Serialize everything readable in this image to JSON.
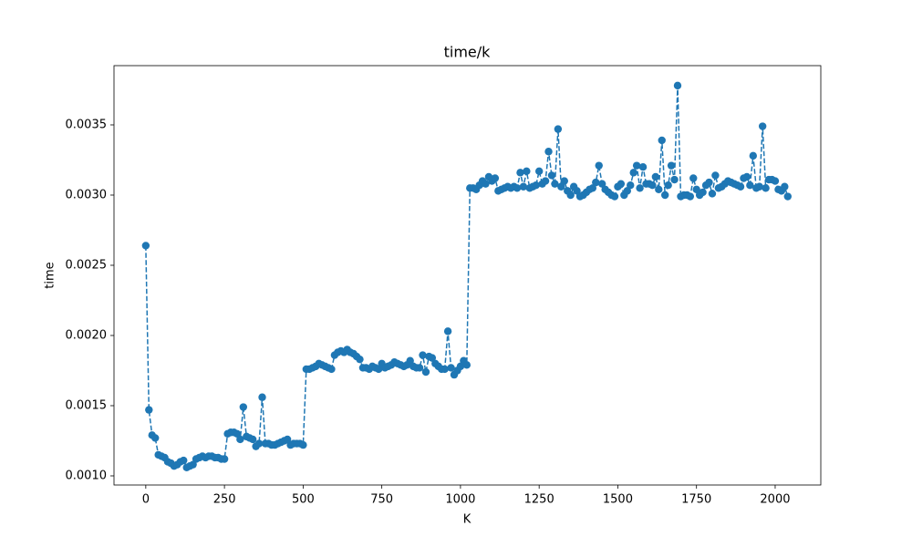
{
  "chart_data": {
    "type": "line",
    "title": "time/k",
    "x_label": "K",
    "y_label": "time",
    "color": "#1f77b4",
    "linestyle": "dashed",
    "marker": "circle",
    "x": [
      0,
      10,
      20,
      30,
      40,
      50,
      60,
      70,
      80,
      90,
      100,
      110,
      120,
      130,
      140,
      150,
      160,
      170,
      180,
      190,
      200,
      210,
      220,
      230,
      240,
      250,
      260,
      270,
      280,
      290,
      300,
      310,
      320,
      330,
      340,
      350,
      360,
      370,
      380,
      390,
      400,
      410,
      420,
      430,
      440,
      450,
      460,
      470,
      480,
      490,
      500,
      510,
      520,
      530,
      540,
      550,
      560,
      570,
      580,
      590,
      600,
      610,
      620,
      630,
      640,
      650,
      660,
      670,
      680,
      690,
      700,
      710,
      720,
      730,
      740,
      750,
      760,
      770,
      780,
      790,
      800,
      810,
      820,
      830,
      840,
      850,
      860,
      870,
      880,
      890,
      900,
      910,
      920,
      930,
      940,
      950,
      960,
      970,
      980,
      990,
      1000,
      1010,
      1020,
      1030,
      1040,
      1050,
      1060,
      1070,
      1080,
      1090,
      1100,
      1110,
      1120,
      1130,
      1140,
      1150,
      1160,
      1170,
      1180,
      1190,
      1200,
      1210,
      1220,
      1230,
      1240,
      1250,
      1260,
      1270,
      1280,
      1290,
      1300,
      1310,
      1320,
      1330,
      1340,
      1350,
      1360,
      1370,
      1380,
      1390,
      1400,
      1410,
      1420,
      1430,
      1440,
      1450,
      1460,
      1470,
      1480,
      1490,
      1500,
      1510,
      1520,
      1530,
      1540,
      1550,
      1560,
      1570,
      1580,
      1590,
      1600,
      1610,
      1620,
      1630,
      1640,
      1650,
      1660,
      1670,
      1680,
      1690,
      1700,
      1710,
      1720,
      1730,
      1740,
      1750,
      1760,
      1770,
      1780,
      1790,
      1800,
      1810,
      1820,
      1830,
      1840,
      1850,
      1860,
      1870,
      1880,
      1890,
      1900,
      1910,
      1920,
      1930,
      1940,
      1950,
      1960,
      1970,
      1980,
      1990,
      2000,
      2010,
      2020,
      2030,
      2040
    ],
    "values": [
      0.00264,
      0.00147,
      0.00129,
      0.00127,
      0.00115,
      0.00114,
      0.00113,
      0.0011,
      0.00109,
      0.00107,
      0.00108,
      0.0011,
      0.00111,
      0.00106,
      0.00107,
      0.00108,
      0.00112,
      0.00113,
      0.00114,
      0.00113,
      0.00114,
      0.00114,
      0.00113,
      0.00113,
      0.00112,
      0.00112,
      0.0013,
      0.00131,
      0.00131,
      0.0013,
      0.00126,
      0.00149,
      0.00128,
      0.00127,
      0.00126,
      0.00121,
      0.00123,
      0.00156,
      0.00123,
      0.00123,
      0.00122,
      0.00122,
      0.00123,
      0.00124,
      0.00125,
      0.00126,
      0.00122,
      0.00123,
      0.00123,
      0.00123,
      0.00122,
      0.00176,
      0.00176,
      0.00177,
      0.00178,
      0.0018,
      0.00179,
      0.00178,
      0.00177,
      0.00176,
      0.00186,
      0.00188,
      0.00189,
      0.00188,
      0.0019,
      0.00188,
      0.00187,
      0.00185,
      0.00183,
      0.00177,
      0.00177,
      0.00176,
      0.00178,
      0.00177,
      0.00176,
      0.0018,
      0.00177,
      0.00178,
      0.00179,
      0.00181,
      0.0018,
      0.00179,
      0.00178,
      0.00179,
      0.00182,
      0.00178,
      0.00177,
      0.00177,
      0.00186,
      0.00174,
      0.00185,
      0.00184,
      0.0018,
      0.00178,
      0.00176,
      0.00176,
      0.00203,
      0.00177,
      0.00172,
      0.00175,
      0.00178,
      0.00182,
      0.00179,
      0.00305,
      0.00305,
      0.00304,
      0.00307,
      0.0031,
      0.00308,
      0.00313,
      0.0031,
      0.00312,
      0.00303,
      0.00304,
      0.00305,
      0.00306,
      0.00305,
      0.00306,
      0.00305,
      0.00316,
      0.00306,
      0.00317,
      0.00305,
      0.00306,
      0.00307,
      0.00317,
      0.00308,
      0.0031,
      0.00331,
      0.00314,
      0.00308,
      0.00347,
      0.00306,
      0.0031,
      0.00303,
      0.003,
      0.00306,
      0.00303,
      0.00299,
      0.003,
      0.00302,
      0.00304,
      0.00305,
      0.00309,
      0.00321,
      0.00308,
      0.00304,
      0.00302,
      0.003,
      0.00299,
      0.00306,
      0.00308,
      0.003,
      0.00303,
      0.00307,
      0.00316,
      0.00321,
      0.00305,
      0.0032,
      0.00308,
      0.00308,
      0.00307,
      0.00313,
      0.00304,
      0.00339,
      0.003,
      0.00307,
      0.00321,
      0.00311,
      0.00378,
      0.00299,
      0.003,
      0.003,
      0.00299,
      0.00312,
      0.00304,
      0.003,
      0.00302,
      0.00307,
      0.00309,
      0.00301,
      0.00314,
      0.00305,
      0.00306,
      0.00308,
      0.0031,
      0.00309,
      0.00308,
      0.00307,
      0.00306,
      0.00312,
      0.00313,
      0.00307,
      0.00328,
      0.00305,
      0.00306,
      0.00349,
      0.00305,
      0.00311,
      0.00311,
      0.0031,
      0.00304,
      0.00303,
      0.00306,
      0.00299
    ],
    "xlim": [
      -101,
      2145
    ],
    "ylim": [
      0.000935,
      0.003922
    ],
    "xticks": [
      0,
      250,
      500,
      750,
      1000,
      1250,
      1500,
      1750,
      2000
    ],
    "yticks": [
      {
        "value": 0.001,
        "label": "0.0010"
      },
      {
        "value": 0.0015,
        "label": "0.0015"
      },
      {
        "value": 0.002,
        "label": "0.0020"
      },
      {
        "value": 0.0025,
        "label": "0.0025"
      },
      {
        "value": 0.003,
        "label": "0.0030"
      },
      {
        "value": 0.0035,
        "label": "0.0035"
      }
    ]
  }
}
